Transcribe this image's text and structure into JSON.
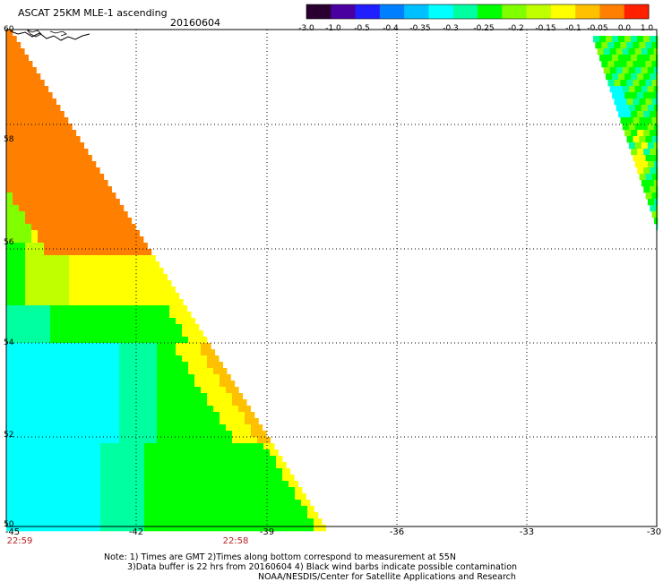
{
  "header": {
    "title": "ASCAT 25KM MLE-1 ascending",
    "date": "20160604"
  },
  "colorbar": {
    "labels": [
      "-3.0",
      "-1.0",
      "-0.5",
      "-0.4",
      "-0.35",
      "-0.3",
      "-0.25",
      "-0.2",
      "-0.15",
      "-0.1",
      "-0.05",
      "0.0",
      "1.0"
    ],
    "colors": [
      "#2a0030",
      "#4a00a0",
      "#2020ff",
      "#0080ff",
      "#00c0ff",
      "#00ffff",
      "#00ffa0",
      "#00ff00",
      "#80ff00",
      "#c0ff00",
      "#ffff00",
      "#ffc000",
      "#ff8000",
      "#ff2000"
    ]
  },
  "map": {
    "lat_labels": [
      "60",
      "58",
      "56",
      "54",
      "52",
      "50"
    ],
    "lon_labels": [
      "-45",
      "-42",
      "-39",
      "-36",
      "-33",
      "-30"
    ],
    "times": [
      "22:59",
      "22:58"
    ],
    "palette": {
      "cyan": "#00ffff",
      "teal": "#00ffa0",
      "green": "#00ff00",
      "lime": "#80ff00",
      "yellowgreen": "#c0ff00",
      "yellow": "#ffff00",
      "amber": "#ffc000",
      "orange": "#ff8000"
    }
  },
  "notes": {
    "line1": "Note: 1) Times are GMT 2)Times along bottom correspond to measurement at 55N",
    "line2": "3)Data buffer is 22 hrs from 20160604 4) Black wind barbs indicate possible contamination",
    "line3": "NOAA/NESDIS/Center for Satellite Applications and Research"
  }
}
